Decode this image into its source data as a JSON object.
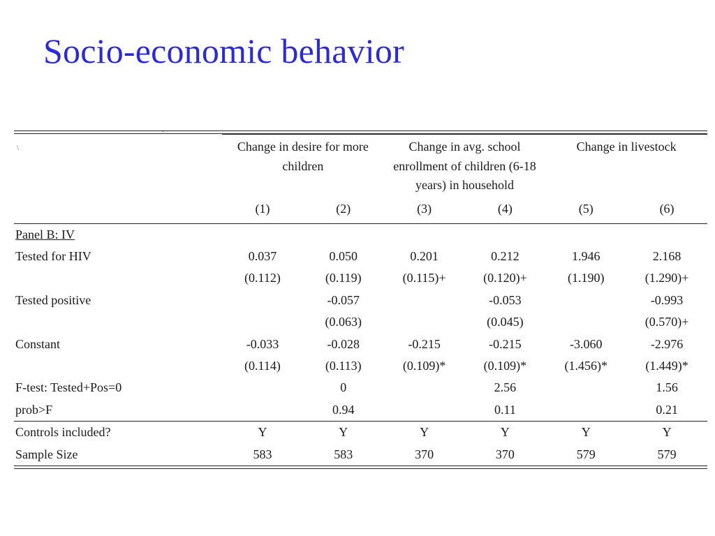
{
  "slide": {
    "title": "Socio-economic behavior"
  },
  "table": {
    "groups": [
      {
        "label": "Change in desire for more children"
      },
      {
        "label": "Change in avg. school enrollment of children (6-18 years) in household"
      },
      {
        "label": "Change in livestock"
      }
    ],
    "column_numbers": [
      "(1)",
      "(2)",
      "(3)",
      "(4)",
      "(5)",
      "(6)"
    ],
    "panel_label": "Panel B: IV",
    "rows": [
      {
        "label": "Tested for HIV",
        "cells": [
          "0.037",
          "0.050",
          "0.201",
          "0.212",
          "1.946",
          "2.168"
        ]
      },
      {
        "label": "",
        "cells": [
          "(0.112)",
          "(0.119)",
          "(0.115)+",
          "(0.120)+",
          "(1.190)",
          "(1.290)+"
        ]
      },
      {
        "label": "Tested positive",
        "cells": [
          "",
          "-0.057",
          "",
          "-0.053",
          "",
          "-0.993"
        ]
      },
      {
        "label": "",
        "cells": [
          "",
          "(0.063)",
          "",
          "(0.045)",
          "",
          "(0.570)+"
        ]
      },
      {
        "label": "Constant",
        "cells": [
          "-0.033",
          "-0.028",
          "-0.215",
          "-0.215",
          "-3.060",
          "-2.976"
        ]
      },
      {
        "label": "",
        "cells": [
          "(0.114)",
          "(0.113)",
          "(0.109)*",
          "(0.109)*",
          "(1.456)*",
          "(1.449)*"
        ]
      },
      {
        "label": "F-test: Tested+Pos=0",
        "cells": [
          "",
          "0",
          "",
          "2.56",
          "",
          "1.56"
        ]
      },
      {
        "label": "prob>F",
        "cells": [
          "",
          "0.94",
          "",
          "0.11",
          "",
          "0.21"
        ]
      }
    ],
    "footer_rows": [
      {
        "label": "Controls included?",
        "cells": [
          "Y",
          "Y",
          "Y",
          "Y",
          "Y",
          "Y"
        ]
      },
      {
        "label": "Sample Size",
        "cells": [
          "583",
          "583",
          "370",
          "370",
          "579",
          "579"
        ]
      }
    ]
  }
}
